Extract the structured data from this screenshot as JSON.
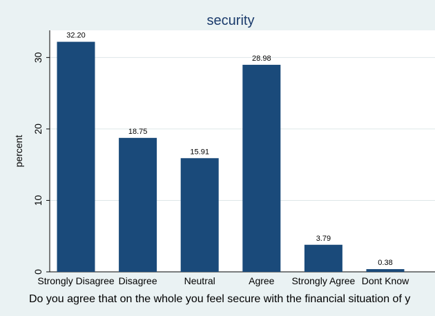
{
  "chart_data": {
    "type": "bar",
    "title": "security",
    "xlabel": "Do you agree that on the whole you feel secure with the financial situation of y",
    "ylabel": "percent",
    "categories": [
      "Strongly Disagree",
      "Disagree",
      "Neutral",
      "Agree",
      "Strongly Agree",
      "Dont Know"
    ],
    "values": [
      32.2,
      18.75,
      15.91,
      28.98,
      3.79,
      0.38
    ],
    "value_labels": [
      "32.20",
      "18.75",
      "15.91",
      "28.98",
      "3.79",
      "0.38"
    ],
    "yticks": [
      0,
      10,
      20,
      30
    ],
    "ytick_labels": [
      "0",
      "10",
      "20",
      "30"
    ],
    "ylim": [
      0,
      33.8
    ],
    "grid": true,
    "bar_color": "#1a4a7a",
    "background_color": "#eaf2f3",
    "plot_background_color": "#ffffff",
    "title_color": "#1a3a6b"
  }
}
